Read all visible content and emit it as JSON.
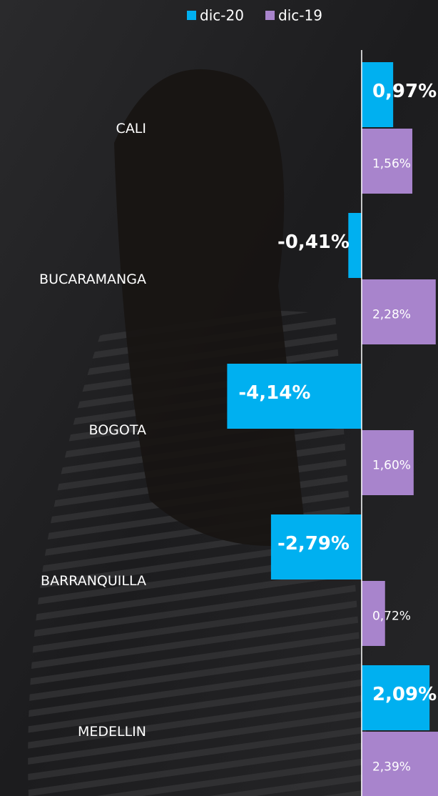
{
  "chart_data": {
    "type": "hbar",
    "categories": [
      "CALI",
      "BUCARAMANGA",
      "BOGOTA",
      "BARRANQUILLA",
      "MEDELLIN"
    ],
    "series": [
      {
        "name": "dic-20",
        "color": "#00b0f0",
        "values": [
          0.97,
          -0.41,
          -4.14,
          -2.79,
          2.09
        ],
        "value_labels": [
          "0,97%",
          "-0,41%",
          "-4,14%",
          "-2,79%",
          "2,09%"
        ]
      },
      {
        "name": "dic-19",
        "color": "#a884cc",
        "values": [
          1.56,
          2.28,
          1.6,
          0.72,
          2.39
        ],
        "value_labels": [
          "1,56%",
          "2,28%",
          "1,60%",
          "0,72%",
          "2,39%"
        ]
      }
    ],
    "xlim": [
      -4.5,
      2.35
    ],
    "legend": "top"
  }
}
